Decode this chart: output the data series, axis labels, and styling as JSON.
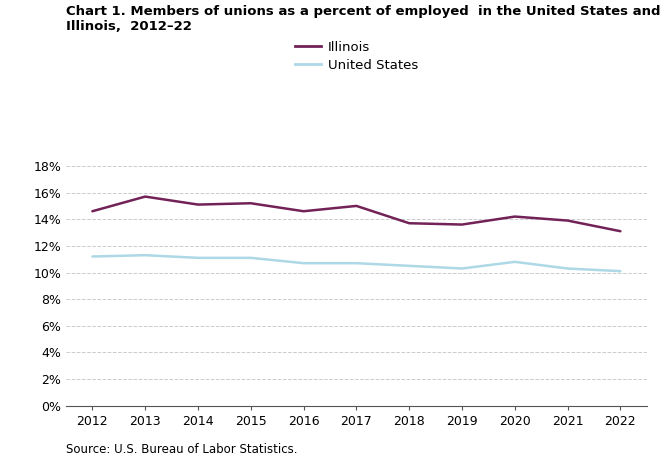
{
  "title_line1": "Chart 1. Members of unions as a percent of employed  in the United States and",
  "title_line2": "Illinois,  2012–22",
  "years": [
    2012,
    2013,
    2014,
    2015,
    2016,
    2017,
    2018,
    2019,
    2020,
    2021,
    2022
  ],
  "illinois": [
    14.6,
    15.7,
    15.1,
    15.2,
    14.6,
    15.0,
    13.7,
    13.6,
    14.2,
    13.9,
    13.1
  ],
  "us": [
    11.2,
    11.3,
    11.1,
    11.1,
    10.7,
    10.7,
    10.5,
    10.3,
    10.8,
    10.3,
    10.1
  ],
  "illinois_color": "#722257",
  "us_color": "#add8e6",
  "illinois_label": "Illinois",
  "us_label": "United States",
  "ylim": [
    0,
    18
  ],
  "ytick_step": 2,
  "source_text": "Source: U.S. Bureau of Labor Statistics.",
  "background_color": "#ffffff",
  "grid_color": "#cccccc",
  "line_width": 1.8
}
